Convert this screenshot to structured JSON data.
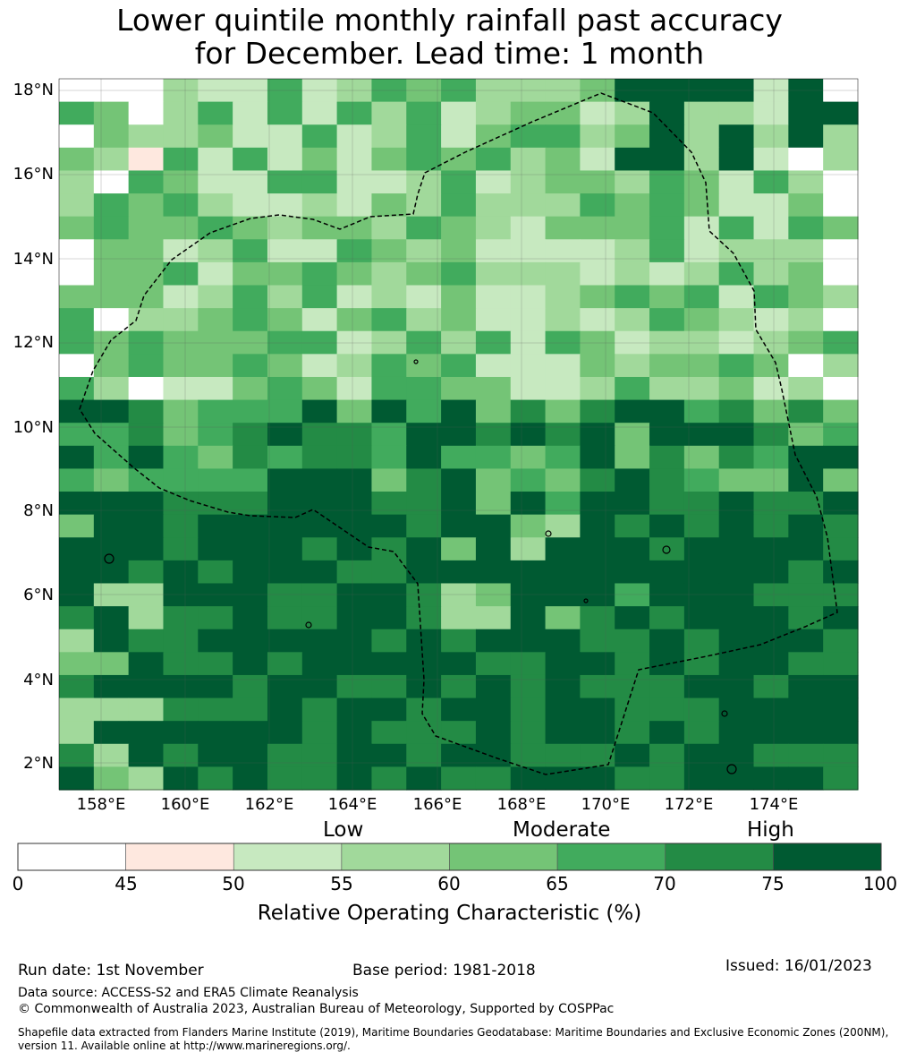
{
  "title": {
    "line1": "Lower quintile monthly rainfall past accuracy",
    "line2": "for December. Lead time: 1 month"
  },
  "map": {
    "lat_labels": [
      "18°N",
      "16°N",
      "14°N",
      "12°N",
      "10°N",
      "8°N",
      "6°N",
      "4°N",
      "2°N"
    ],
    "lon_labels": [
      "158°E",
      "160°E",
      "162°E",
      "164°E",
      "166°E",
      "168°E",
      "170°E",
      "172°E",
      "174°E"
    ],
    "boundary_style": "dashed black (exclusive economic zone)"
  },
  "legend": {
    "categories": [
      "Low",
      "Moderate",
      "High"
    ],
    "ticks": [
      "0",
      "45",
      "50",
      "55",
      "60",
      "65",
      "70",
      "75",
      "100"
    ],
    "colors": [
      "#ffffff",
      "#fee8df",
      "#c7e9c0",
      "#a1d99b",
      "#74c476",
      "#41ab5d",
      "#238b45",
      "#005a32"
    ],
    "title": "Relative Operating Characteristic (%)"
  },
  "footer": {
    "run_date": "Run date: 1st November",
    "base_period": "Base period: 1981-2018",
    "issued": "Issued: 16/01/2023",
    "data_source": "Data source: ACCESS-S2 and ERA5 Climate Reanalysis",
    "copyright": "© Commonwealth of Australia 2023, Australian Bureau of Meteorology, Supported by COSPPac",
    "shapefile": "Shapefile data extracted from Flanders Marine Institute (2019), Maritime Boundaries Geodatabase: Maritime Boundaries and Exclusive Economic Zones (200NM), version 11. Available online at http://www.marineregions.org/."
  }
}
